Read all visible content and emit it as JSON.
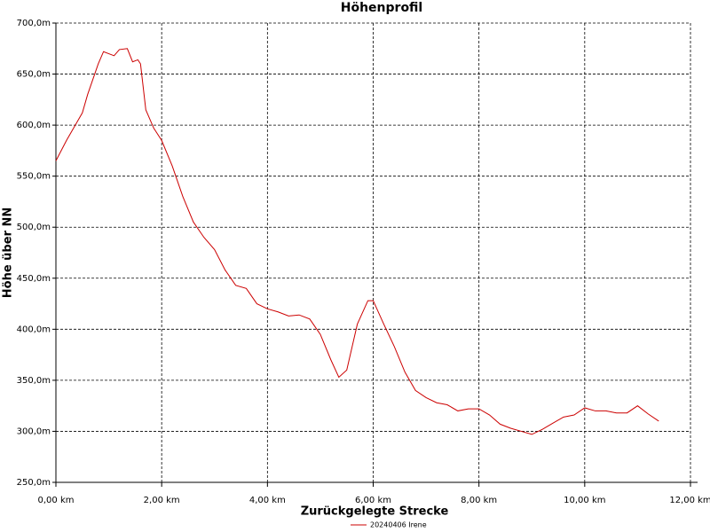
{
  "chart_data": {
    "type": "line",
    "title": "Höhenprofil",
    "x_label": "Zurückgelegte Strecke",
    "y_label": "Höhe über NN",
    "x": [
      0.0,
      0.2,
      0.4,
      0.5,
      0.6,
      0.7,
      0.8,
      0.9,
      1.0,
      1.1,
      1.2,
      1.35,
      1.45,
      1.55,
      1.6,
      1.7,
      1.85,
      2.0,
      2.2,
      2.4,
      2.6,
      2.8,
      3.0,
      3.2,
      3.4,
      3.6,
      3.8,
      4.0,
      4.2,
      4.4,
      4.6,
      4.8,
      5.0,
      5.2,
      5.35,
      5.5,
      5.7,
      5.9,
      6.0,
      6.2,
      6.4,
      6.6,
      6.8,
      7.0,
      7.2,
      7.4,
      7.6,
      7.8,
      8.0,
      8.2,
      8.4,
      8.6,
      8.8,
      9.0,
      9.2,
      9.4,
      9.6,
      9.8,
      10.0,
      10.2,
      10.4,
      10.6,
      10.8,
      11.0,
      11.2,
      11.4
    ],
    "series": [
      {
        "name": "20240406 Irene",
        "color": "#cc0000",
        "values": [
          565,
          585,
          603,
          612,
          630,
          645,
          660,
          672,
          670,
          668,
          674,
          675,
          662,
          664,
          660,
          615,
          597,
          585,
          560,
          530,
          505,
          490,
          478,
          458,
          443,
          440,
          425,
          420,
          417,
          413,
          414,
          410,
          395,
          370,
          353,
          360,
          405,
          428,
          428,
          405,
          383,
          358,
          340,
          333,
          328,
          326,
          320,
          322,
          322,
          316,
          307,
          303,
          300,
          297,
          302,
          308,
          314,
          316,
          323,
          320,
          320,
          318,
          318,
          325,
          317,
          310
        ]
      }
    ],
    "xlim": [
      0,
      12
    ],
    "xticks": [
      {
        "value": 0,
        "label": "0,00 km"
      },
      {
        "value": 2,
        "label": "2,00 km"
      },
      {
        "value": 4,
        "label": "4,00 km"
      },
      {
        "value": 6,
        "label": "6,00 km"
      },
      {
        "value": 8,
        "label": "8,00 km"
      },
      {
        "value": 10,
        "label": "10,00 km"
      },
      {
        "value": 12,
        "label": "12,00 km"
      }
    ],
    "ylim": [
      250,
      700
    ],
    "yticks": [
      {
        "value": 250,
        "label": "250,0m"
      },
      {
        "value": 300,
        "label": "300,0m"
      },
      {
        "value": 350,
        "label": "350,0m"
      },
      {
        "value": 400,
        "label": "400,0m"
      },
      {
        "value": 450,
        "label": "450,0m"
      },
      {
        "value": 500,
        "label": "500,0m"
      },
      {
        "value": 550,
        "label": "550,0m"
      },
      {
        "value": 600,
        "label": "600,0m"
      },
      {
        "value": 650,
        "label": "650,0m"
      },
      {
        "value": 700,
        "label": "700,0m"
      }
    ],
    "grid": true,
    "legend": "bottom"
  }
}
